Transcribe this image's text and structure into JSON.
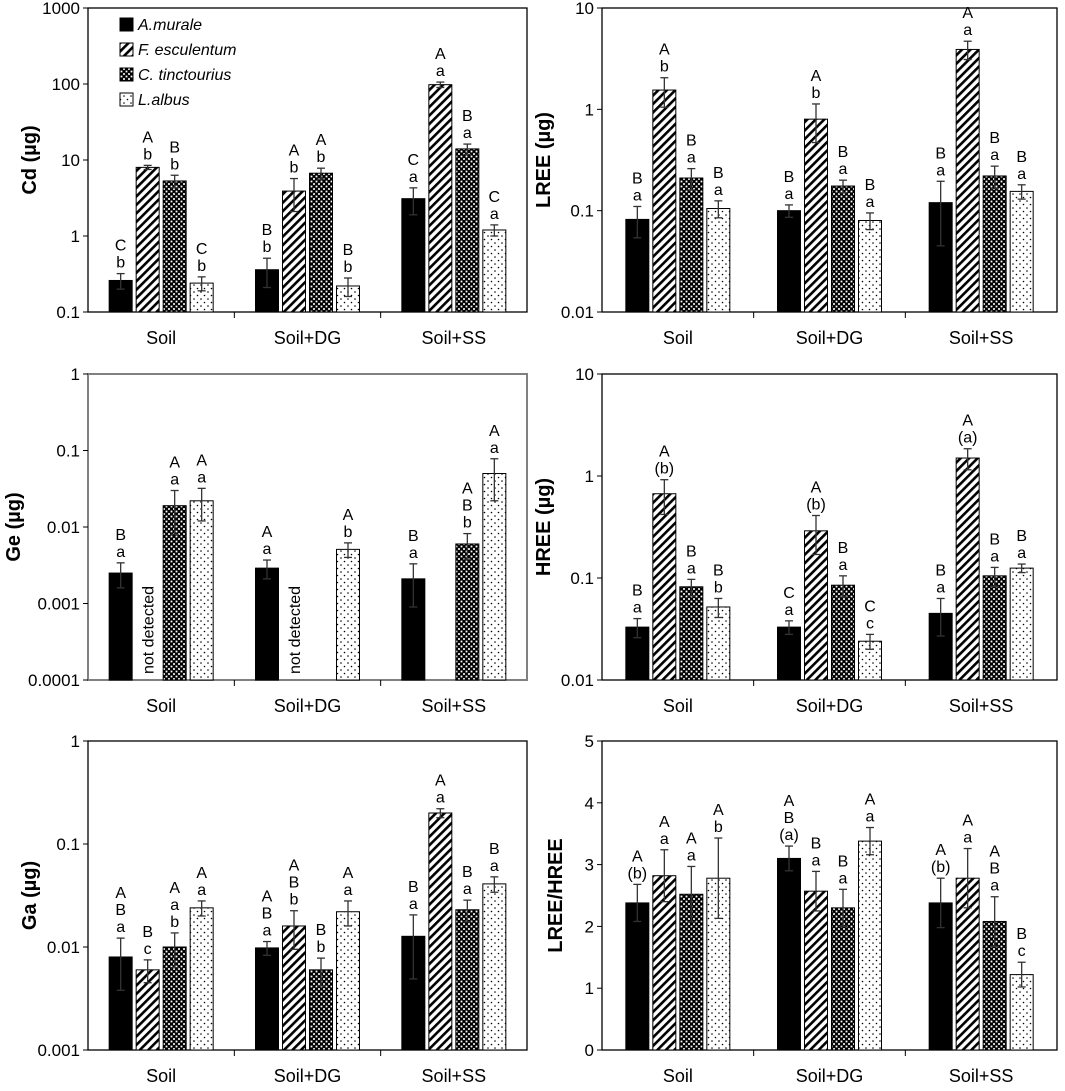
{
  "legend": [
    {
      "name": "A.murale",
      "pattern": "solid"
    },
    {
      "name": "F. esculentum",
      "pattern": "hatch"
    },
    {
      "name": "C. tinctourius",
      "pattern": "check"
    },
    {
      "name": "L.albus",
      "pattern": "dots"
    }
  ],
  "colors": {
    "solid": "#000000",
    "frame": "#000000",
    "frame_gray": "#808080"
  },
  "chart_data": [
    {
      "id": "cd",
      "type": "bar",
      "scale": "log",
      "ylabel": "Cd (µg)",
      "ylim": [
        0.1,
        1000
      ],
      "yticks": [
        "0.1",
        "1",
        "10",
        "100",
        "1000"
      ],
      "categories": [
        "Soil",
        "Soil+DG",
        "Soil+SS"
      ],
      "series": [
        {
          "name": "A.murale",
          "values": [
            0.26,
            0.36,
            3.1
          ],
          "err": [
            0.06,
            0.15,
            1.2
          ]
        },
        {
          "name": "F. esculentum",
          "values": [
            8.0,
            3.9,
            98
          ],
          "err": [
            0.5,
            1.8,
            8
          ]
        },
        {
          "name": "C. tinctourius",
          "values": [
            5.3,
            6.7,
            14
          ],
          "err": [
            1.0,
            1.1,
            2.2
          ]
        },
        {
          "name": "L.albus",
          "values": [
            0.24,
            0.22,
            1.2
          ],
          "err": [
            0.05,
            0.06,
            0.2
          ]
        }
      ],
      "labels": [
        [
          [
            "C",
            "b"
          ],
          [
            "A",
            "b"
          ],
          [
            "B",
            "b"
          ],
          [
            "C",
            "b"
          ]
        ],
        [
          [
            "B",
            "b"
          ],
          [
            "A",
            "b"
          ],
          [
            "A",
            "b"
          ],
          [
            "B",
            "b"
          ]
        ],
        [
          [
            "C",
            "a"
          ],
          [
            "A",
            "a"
          ],
          [
            "B",
            "a"
          ],
          [
            "C",
            "a"
          ]
        ]
      ]
    },
    {
      "id": "lree",
      "type": "bar",
      "scale": "log",
      "ylabel": "LREE (µg)",
      "ylim": [
        0.01,
        10
      ],
      "yticks": [
        "0.01",
        "0.1",
        "1",
        "10"
      ],
      "categories": [
        "Soil",
        "Soil+DG",
        "Soil+SS"
      ],
      "series": [
        {
          "name": "A.murale",
          "values": [
            0.082,
            0.1,
            0.12
          ],
          "err": [
            0.028,
            0.014,
            0.075
          ]
        },
        {
          "name": "F. esculentum",
          "values": [
            1.55,
            0.8,
            3.9
          ],
          "err": [
            0.5,
            0.33,
            0.8
          ]
        },
        {
          "name": "C. tinctourius",
          "values": [
            0.21,
            0.175,
            0.22
          ],
          "err": [
            0.05,
            0.025,
            0.055
          ]
        },
        {
          "name": "L.albus",
          "values": [
            0.105,
            0.08,
            0.155
          ],
          "err": [
            0.02,
            0.015,
            0.025
          ]
        }
      ],
      "labels": [
        [
          [
            "B",
            "a"
          ],
          [
            "A",
            "b"
          ],
          [
            "B",
            "a"
          ],
          [
            "B",
            "a"
          ]
        ],
        [
          [
            "B",
            "a"
          ],
          [
            "A",
            "b"
          ],
          [
            "B",
            "a"
          ],
          [
            "B",
            "a"
          ]
        ],
        [
          [
            "B",
            "a"
          ],
          [
            "A",
            "a"
          ],
          [
            "B",
            "a"
          ],
          [
            "B",
            "a"
          ]
        ]
      ]
    },
    {
      "id": "ge",
      "type": "bar",
      "scale": "log",
      "ylabel": "Ge (µg)",
      "ylim": [
        0.0001,
        1
      ],
      "yticks": [
        "0.0001",
        "0.001",
        "0.01",
        "0.1",
        "1"
      ],
      "categories": [
        "Soil",
        "Soil+DG",
        "Soil+SS"
      ],
      "series": [
        {
          "name": "A.murale",
          "values": [
            0.0025,
            0.0029,
            0.0021
          ],
          "err": [
            0.0009,
            0.0008,
            0.0012
          ]
        },
        {
          "name": "F. esculentum",
          "values": [
            null,
            null,
            null
          ],
          "err": [
            0,
            0,
            0
          ]
        },
        {
          "name": "C. tinctourius",
          "values": [
            0.019,
            null,
            0.006
          ],
          "err": [
            0.011,
            0,
            0.0022
          ]
        },
        {
          "name": "L.albus",
          "values": [
            0.022,
            0.0051,
            0.05
          ],
          "err": [
            0.01,
            0.0011,
            0.028
          ]
        }
      ],
      "labels": [
        [
          [
            "B",
            "a"
          ],
          null,
          [
            "A",
            "a"
          ],
          [
            "A",
            "a"
          ]
        ],
        [
          [
            "A",
            "a"
          ],
          null,
          null,
          [
            "A",
            "b"
          ]
        ],
        [
          [
            "B",
            "a"
          ],
          null,
          [
            "A",
            "B",
            "b"
          ],
          [
            "A",
            "a"
          ]
        ]
      ],
      "annotations": [
        "not detected",
        "not detected"
      ]
    },
    {
      "id": "hree",
      "type": "bar",
      "scale": "log",
      "ylabel": "HREE (µg)",
      "ylim": [
        0.01,
        10
      ],
      "yticks": [
        "0.01",
        "0.1",
        "1",
        "10"
      ],
      "categories": [
        "Soil",
        "Soil+DG",
        "Soil+SS"
      ],
      "series": [
        {
          "name": "A.murale",
          "values": [
            0.033,
            0.033,
            0.045
          ],
          "err": [
            0.007,
            0.005,
            0.018
          ]
        },
        {
          "name": "F. esculentum",
          "values": [
            0.67,
            0.29,
            1.5
          ],
          "err": [
            0.25,
            0.12,
            0.35
          ]
        },
        {
          "name": "C. tinctourius",
          "values": [
            0.082,
            0.085,
            0.105
          ],
          "err": [
            0.015,
            0.02,
            0.022
          ]
        },
        {
          "name": "L.albus",
          "values": [
            0.052,
            0.024,
            0.125
          ],
          "err": [
            0.011,
            0.004,
            0.012
          ]
        }
      ],
      "labels": [
        [
          [
            "B",
            "a"
          ],
          [
            "A",
            "(b)"
          ],
          [
            "B",
            "a"
          ],
          [
            "B",
            "b"
          ]
        ],
        [
          [
            "C",
            "a"
          ],
          [
            "A",
            "(b)"
          ],
          [
            "B",
            "a"
          ],
          [
            "C",
            "c"
          ]
        ],
        [
          [
            "B",
            "a"
          ],
          [
            "A",
            "(a)"
          ],
          [
            "B",
            "a"
          ],
          [
            "B",
            "a"
          ]
        ]
      ]
    },
    {
      "id": "ga",
      "type": "bar",
      "scale": "log",
      "ylabel": "Ga (µg)",
      "ylim": [
        0.001,
        1
      ],
      "yticks": [
        "0.001",
        "0.01",
        "0.1",
        "1"
      ],
      "categories": [
        "Soil",
        "Soil+DG",
        "Soil+SS"
      ],
      "series": [
        {
          "name": "A.murale",
          "values": [
            0.008,
            0.0098,
            0.0127
          ],
          "err": [
            0.0042,
            0.0015,
            0.0078
          ]
        },
        {
          "name": "F. esculentum",
          "values": [
            0.006,
            0.016,
            0.2
          ],
          "err": [
            0.0015,
            0.0065,
            0.02
          ]
        },
        {
          "name": "C. tinctourius",
          "values": [
            0.01,
            0.006,
            0.023
          ],
          "err": [
            0.0037,
            0.0018,
            0.0055
          ]
        },
        {
          "name": "L.albus",
          "values": [
            0.024,
            0.022,
            0.041
          ],
          "err": [
            0.004,
            0.006,
            0.007
          ]
        }
      ],
      "labels": [
        [
          [
            "A",
            "B",
            "a"
          ],
          [
            "B",
            "c"
          ],
          [
            "A",
            "a",
            "b"
          ],
          [
            "A",
            "a"
          ]
        ],
        [
          [
            "A",
            "B",
            "a"
          ],
          [
            "A",
            "B",
            "b"
          ],
          [
            "B",
            "b"
          ],
          [
            "A",
            "a"
          ]
        ],
        [
          [
            "B",
            "a"
          ],
          [
            "A",
            "a"
          ],
          [
            "B",
            "a"
          ],
          [
            "B",
            "a"
          ]
        ]
      ]
    },
    {
      "id": "ratio",
      "type": "bar",
      "scale": "linear",
      "ylabel": "LREE/HREE",
      "ylim": [
        0,
        5
      ],
      "yticks": [
        "0",
        "1",
        "2",
        "3",
        "4",
        "5"
      ],
      "categories": [
        "Soil",
        "Soil+DG",
        "Soil+SS"
      ],
      "series": [
        {
          "name": "A.murale",
          "values": [
            2.38,
            3.1,
            2.38
          ],
          "err": [
            0.3,
            0.2,
            0.4
          ]
        },
        {
          "name": "F. esculentum",
          "values": [
            2.82,
            2.57,
            2.78
          ],
          "err": [
            0.42,
            0.32,
            0.48
          ]
        },
        {
          "name": "C. tinctourius",
          "values": [
            2.52,
            2.3,
            2.08
          ],
          "err": [
            0.45,
            0.3,
            0.4
          ]
        },
        {
          "name": "L.albus",
          "values": [
            2.78,
            3.38,
            1.22
          ],
          "err": [
            0.65,
            0.22,
            0.2
          ]
        }
      ],
      "labels": [
        [
          [
            "A",
            "(b)"
          ],
          [
            "A",
            "a"
          ],
          [
            "A",
            "a"
          ],
          [
            "A",
            "b"
          ]
        ],
        [
          [
            "A",
            "B",
            "(a)"
          ],
          [
            "B",
            "a"
          ],
          [
            "B",
            "a"
          ],
          [
            "A",
            "a"
          ]
        ],
        [
          [
            "A",
            "(b)"
          ],
          [
            "A",
            "a"
          ],
          [
            "A",
            "B",
            "a"
          ],
          [
            "B",
            "c"
          ]
        ]
      ]
    }
  ]
}
